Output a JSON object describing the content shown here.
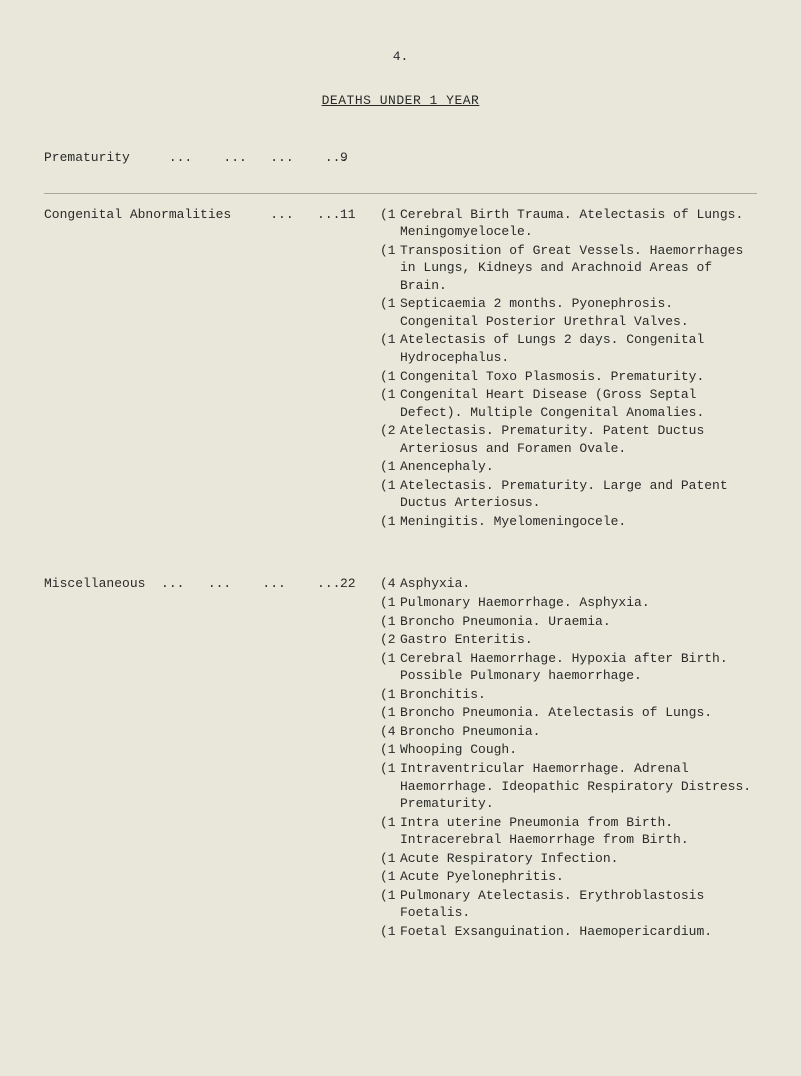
{
  "page_number": "4.",
  "title": "DEATHS UNDER 1 YEAR",
  "sections": [
    {
      "label": "Prematurity     ...    ...   ...    ...",
      "count": "9",
      "details": []
    },
    {
      "label": "Congenital Abnormalities     ...   ...",
      "count": "11",
      "details": [
        {
          "n": "(1",
          "t": "Cerebral Birth Trauma. Atelectasis of Lungs. Meningomyelocele."
        },
        {
          "n": "(1",
          "t": "Transposition of Great Vessels. Haemorrhages in Lungs, Kidneys and Arachnoid Areas of Brain."
        },
        {
          "n": "(1",
          "t": "Septicaemia 2 months. Pyonephrosis. Congenital Posterior Urethral Valves."
        },
        {
          "n": "(1",
          "t": "Atelectasis of Lungs 2 days. Congenital Hydrocephalus."
        },
        {
          "n": "(1",
          "t": "Congenital Toxo Plasmosis. Prematurity."
        },
        {
          "n": "(1",
          "t": "Congenital Heart Disease (Gross Septal Defect). Multiple Congenital Anomalies."
        },
        {
          "n": "(2",
          "t": "Atelectasis. Prematurity. Patent Ductus Arteriosus and Foramen Ovale."
        },
        {
          "n": "(1",
          "t": "Anencephaly."
        },
        {
          "n": "(1",
          "t": "Atelectasis. Prematurity. Large and Patent Ductus Arteriosus."
        },
        {
          "n": "(1",
          "t": "Meningitis. Myelomeningocele."
        }
      ]
    },
    {
      "label": "Miscellaneous  ...   ...    ...    ...",
      "count": "22",
      "details": [
        {
          "n": "(4",
          "t": "Asphyxia."
        },
        {
          "n": "(1",
          "t": "Pulmonary Haemorrhage. Asphyxia."
        },
        {
          "n": "(1",
          "t": "Broncho Pneumonia. Uraemia."
        },
        {
          "n": "(2",
          "t": "Gastro Enteritis."
        },
        {
          "n": "(1",
          "t": "Cerebral Haemorrhage. Hypoxia after Birth. Possible Pulmonary haemorrhage."
        },
        {
          "n": "(1",
          "t": "Bronchitis."
        },
        {
          "n": "(1",
          "t": "Broncho Pneumonia. Atelectasis of Lungs."
        },
        {
          "n": "(4",
          "t": "Broncho Pneumonia."
        },
        {
          "n": "(1",
          "t": "Whooping Cough."
        },
        {
          "n": "(1",
          "t": "Intraventricular Haemorrhage. Adrenal Haemorrhage. Ideopathic Respiratory Distress. Prematurity."
        },
        {
          "n": "(1",
          "t": "Intra uterine Pneumonia from Birth. Intracerebral Haemorrhage from Birth."
        },
        {
          "n": "(1",
          "t": "Acute Respiratory Infection."
        },
        {
          "n": "(1",
          "t": "Acute Pyelonephritis."
        },
        {
          "n": "(1",
          "t": "Pulmonary Atelectasis. Erythroblastosis Foetalis."
        },
        {
          "n": "(1",
          "t": "Foetal Exsanguination. Haemopericardium."
        }
      ]
    }
  ]
}
